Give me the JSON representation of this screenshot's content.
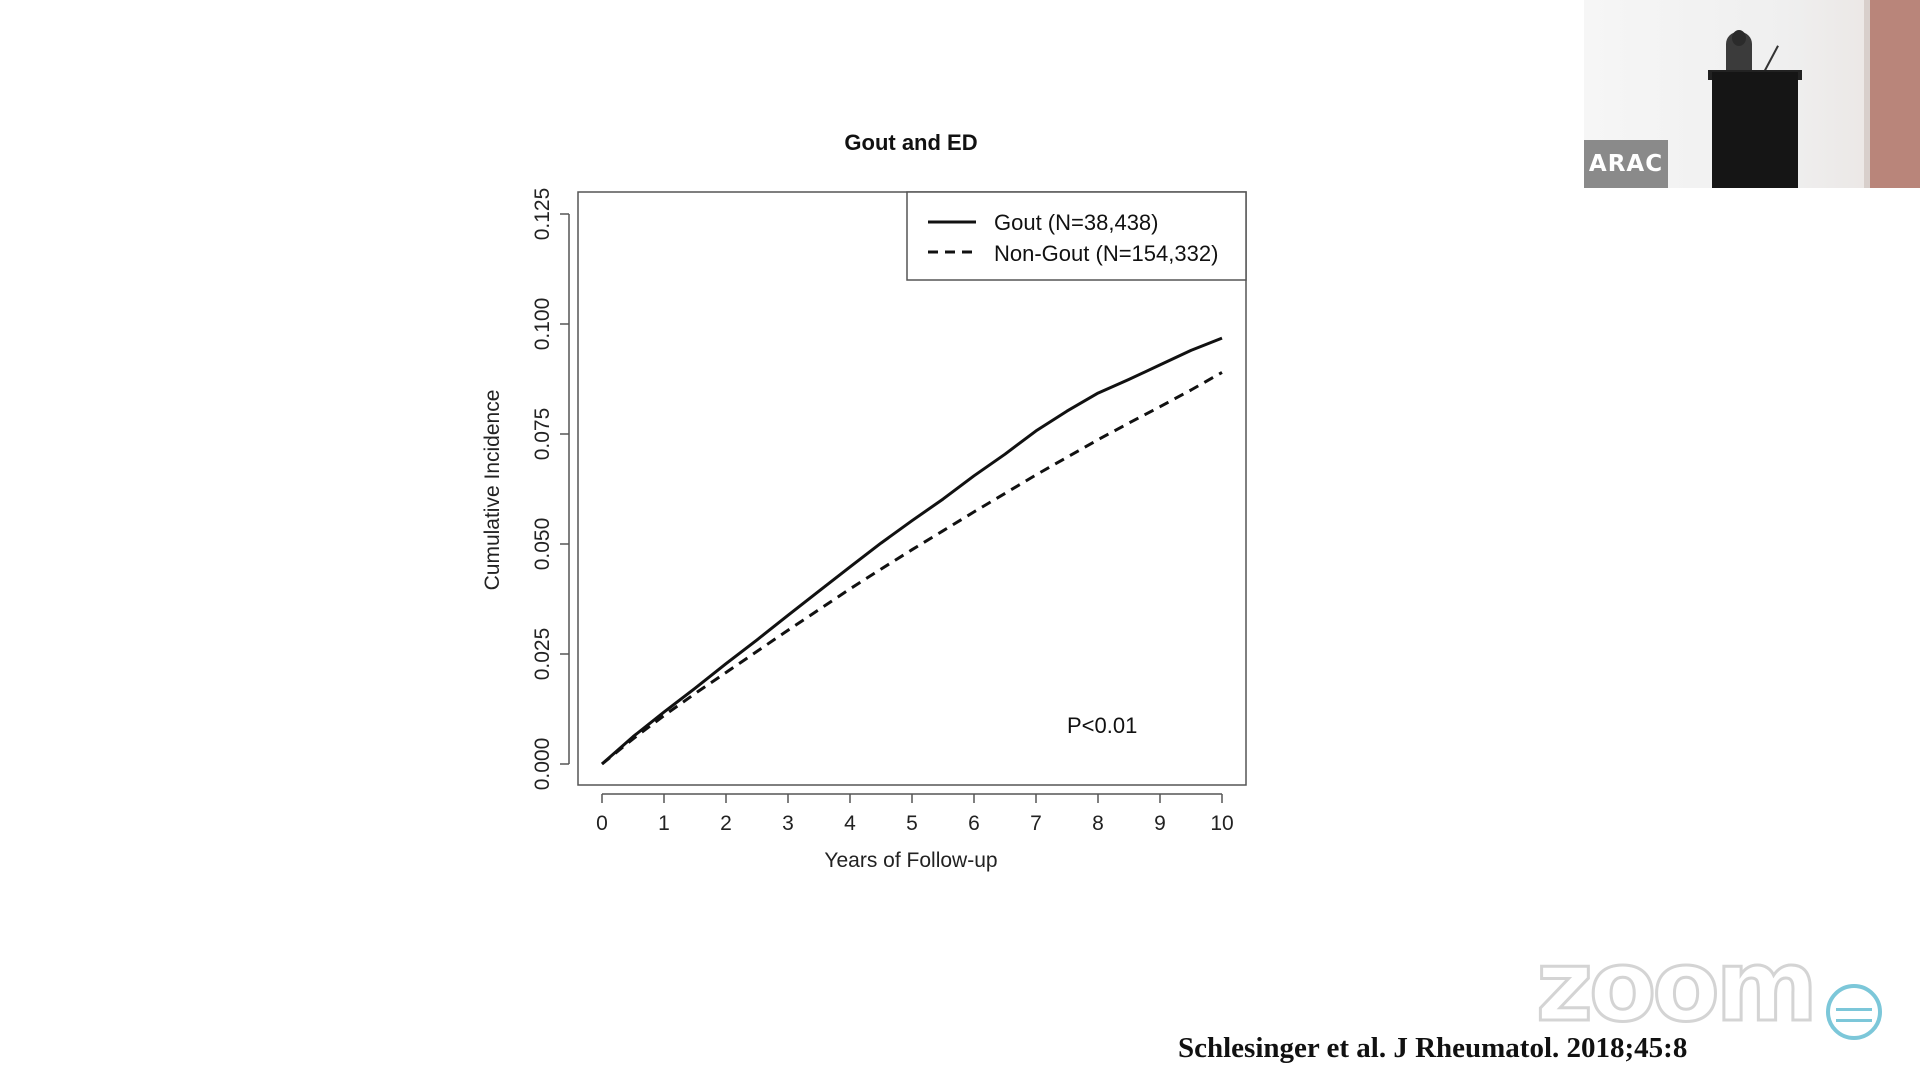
{
  "chart_data": {
    "type": "line",
    "title": "Gout and ED",
    "xlabel": "Years of Follow-up",
    "ylabel": "Cumulative Incidence",
    "xlim": [
      0,
      10
    ],
    "ylim": [
      0,
      0.125
    ],
    "xticks": [
      "0",
      "1",
      "2",
      "3",
      "4",
      "5",
      "6",
      "7",
      "8",
      "9",
      "10"
    ],
    "yticks": [
      "0.000",
      "0.025",
      "0.050",
      "0.075",
      "0.100",
      "0.125"
    ],
    "legend_position": "top-right",
    "annotation": "P<0.01",
    "series": [
      {
        "name": "Gout (N=38,438)",
        "line_style": "solid",
        "x": [
          0,
          0.5,
          1,
          1.5,
          2,
          2.5,
          3,
          3.5,
          4,
          4.5,
          5,
          5.5,
          6,
          6.5,
          7,
          7.5,
          8,
          8.5,
          9,
          9.5,
          10
        ],
        "y": [
          0,
          0.0062,
          0.0118,
          0.0172,
          0.0228,
          0.0282,
          0.0338,
          0.0393,
          0.0448,
          0.0502,
          0.0553,
          0.0602,
          0.0655,
          0.0704,
          0.0757,
          0.0802,
          0.0843,
          0.0874,
          0.0907,
          0.094,
          0.0968
        ]
      },
      {
        "name": "Non-Gout (N=154,332)",
        "line_style": "dashed",
        "x": [
          0,
          0.5,
          1,
          1.5,
          2,
          2.5,
          3,
          3.5,
          4,
          4.5,
          5,
          5.5,
          6,
          6.5,
          7,
          7.5,
          8,
          8.5,
          9,
          9.5,
          10
        ],
        "y": [
          0,
          0.0057,
          0.011,
          0.016,
          0.0208,
          0.0256,
          0.0304,
          0.0351,
          0.0398,
          0.0443,
          0.0487,
          0.053,
          0.0573,
          0.0615,
          0.0657,
          0.0697,
          0.0737,
          0.0775,
          0.0812,
          0.085,
          0.089
        ]
      }
    ]
  },
  "thumbnail": {
    "badge_text": "ARAC"
  },
  "watermark": {
    "text": "zoom"
  },
  "citation": "Schlesinger  et al. J Rheumatol. 2018;45:8"
}
